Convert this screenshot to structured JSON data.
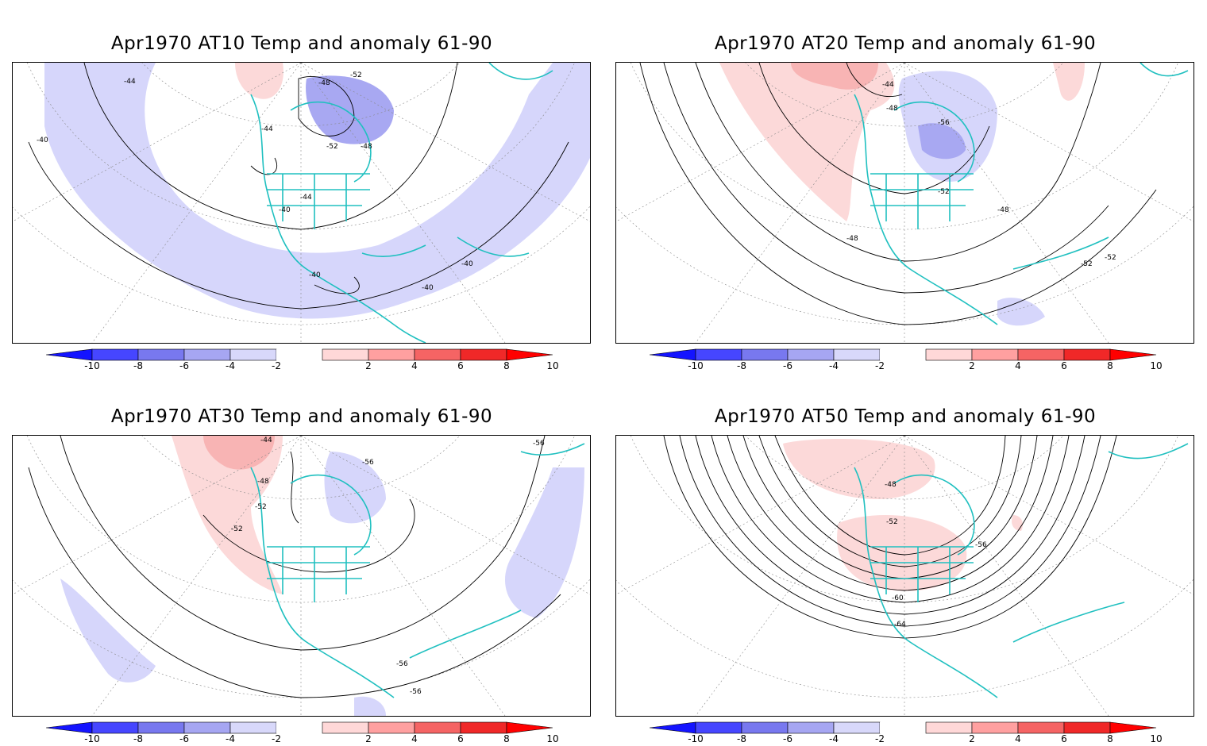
{
  "panels": [
    {
      "title": "Apr1970 AT10 Temp and anomaly 61-90",
      "contours": [
        "-44",
        "-48",
        "-52",
        "-40",
        "-44",
        "-52",
        "-48",
        "-44",
        "-40",
        "-40",
        "-40",
        "-40"
      ]
    },
    {
      "title": "Apr1970 AT20 Temp and anomaly 61-90",
      "contours": [
        "-44",
        "-48",
        "-56",
        "-52",
        "-48",
        "-48",
        "-52",
        "-52"
      ]
    },
    {
      "title": "Apr1970 AT30 Temp and anomaly 61-90",
      "contours": [
        "-44",
        "-48",
        "-56",
        "-52",
        "-52",
        "-56",
        "-56",
        "-56"
      ]
    },
    {
      "title": "Apr1970 AT50 Temp and anomaly 61-90",
      "contours": [
        "-48",
        "-52",
        "-56",
        "-60",
        "-64"
      ]
    }
  ],
  "colorbar": {
    "ticks": [
      "-10",
      "-8",
      "-6",
      "-4",
      "-2",
      "2",
      "4",
      "6",
      "8",
      "10"
    ],
    "colors": [
      "#1414ff",
      "#4646ff",
      "#7878ef",
      "#a6a6f2",
      "#d8d8fa",
      "#ffffff",
      "#ffd8d8",
      "#ffa0a0",
      "#f56464",
      "#f02828",
      "#ff0000"
    ]
  },
  "colors": {
    "coast": "#20c0c0",
    "anomaly_neg": "#d6d6fb",
    "anomaly_pos": "#fcd9d9"
  }
}
